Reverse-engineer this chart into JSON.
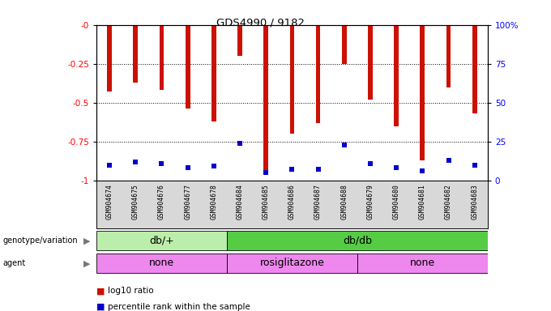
{
  "title": "GDS4990 / 9182",
  "samples": [
    "GSM904674",
    "GSM904675",
    "GSM904676",
    "GSM904677",
    "GSM904678",
    "GSM904684",
    "GSM904685",
    "GSM904686",
    "GSM904687",
    "GSM904688",
    "GSM904679",
    "GSM904680",
    "GSM904681",
    "GSM904682",
    "GSM904683"
  ],
  "log10_ratio": [
    -0.43,
    -0.37,
    -0.42,
    -0.54,
    -0.62,
    -0.2,
    -0.95,
    -0.7,
    -0.63,
    -0.25,
    -0.48,
    -0.65,
    -0.87,
    -0.4,
    -0.57
  ],
  "percentile": [
    0.1,
    0.12,
    0.11,
    0.08,
    0.09,
    0.24,
    0.05,
    0.07,
    0.07,
    0.23,
    0.11,
    0.08,
    0.06,
    0.13,
    0.1
  ],
  "genotype_groups": [
    {
      "label": "db/+",
      "start": 0,
      "end": 5
    },
    {
      "label": "db/db",
      "start": 5,
      "end": 15
    }
  ],
  "genotype_colors": [
    "#bbeeaa",
    "#55cc44"
  ],
  "agent_groups": [
    {
      "label": "none",
      "start": 0,
      "end": 5
    },
    {
      "label": "rosiglitazone",
      "start": 5,
      "end": 10
    },
    {
      "label": "none",
      "start": 10,
      "end": 15
    }
  ],
  "agent_color": "#ee88ee",
  "bar_color": "#cc1100",
  "dot_color": "#0000cc",
  "left_yticks": [
    0,
    -0.25,
    -0.5,
    -0.75,
    -1.0
  ],
  "left_yticklabels": [
    "-0",
    "-0.25",
    "-0.5",
    "-0.75",
    "-1"
  ],
  "right_yticks": [
    0.0,
    -0.25,
    -0.5,
    -0.75,
    -1.0
  ],
  "right_yticklabels": [
    "100%",
    "75",
    "50",
    "25",
    "0"
  ]
}
